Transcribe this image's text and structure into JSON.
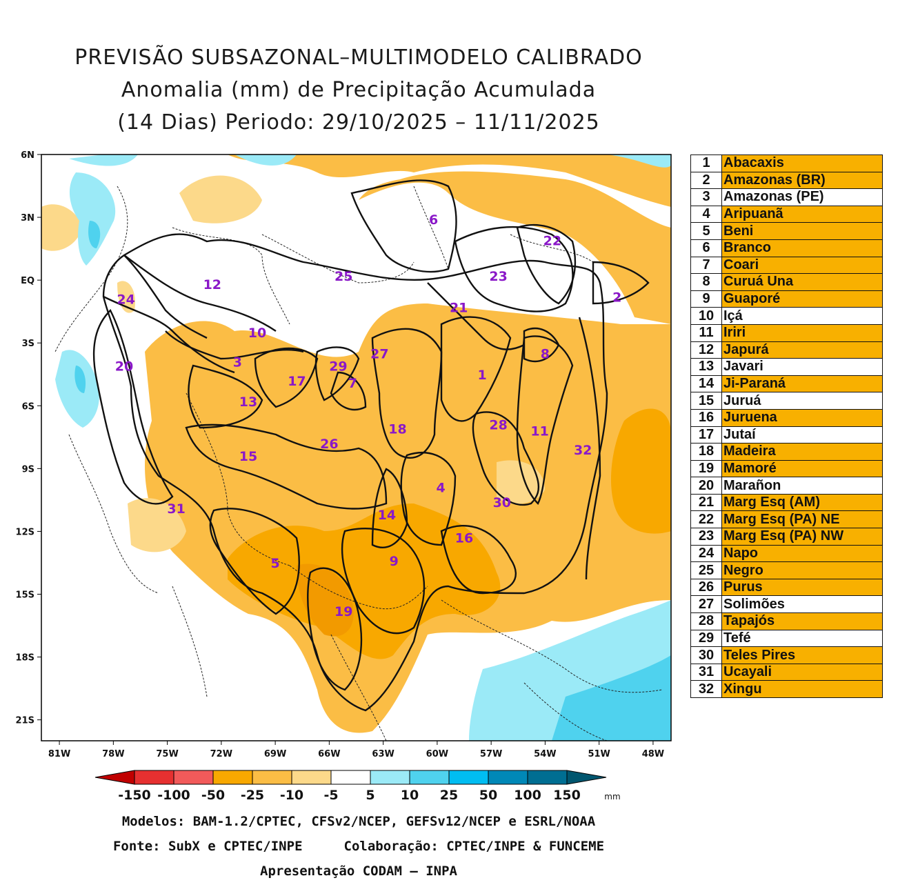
{
  "title": {
    "line1": "PREVISÃO SUBSAZONAL–MULTIMODELO CALIBRADO",
    "line2": "Anomalia (mm) de Precipitação Acumulada",
    "line3": "(14 Dias) Periodo: 29/10/2025 – 11/11/2025"
  },
  "map": {
    "lon_range": [
      -82,
      -47
    ],
    "lat_range": [
      -22,
      6
    ],
    "x_ticks": [
      "81W",
      "78W",
      "75W",
      "72W",
      "69W",
      "66W",
      "63W",
      "60W",
      "57W",
      "54W",
      "51W",
      "48W"
    ],
    "y_ticks": [
      "6N",
      "3N",
      "EQ",
      "3S",
      "6S",
      "9S",
      "12S",
      "15S",
      "18S",
      "21S"
    ],
    "basin_labels": [
      {
        "id": "1",
        "lon": -57.5,
        "lat": -4.5
      },
      {
        "id": "2",
        "lon": -50.0,
        "lat": -0.8
      },
      {
        "id": "3",
        "lon": -71.1,
        "lat": -3.9
      },
      {
        "id": "4",
        "lon": -59.8,
        "lat": -9.9
      },
      {
        "id": "5",
        "lon": -69.0,
        "lat": -13.5
      },
      {
        "id": "6",
        "lon": -60.2,
        "lat": 2.9
      },
      {
        "id": "7",
        "lon": -64.7,
        "lat": -4.9
      },
      {
        "id": "8",
        "lon": -54.0,
        "lat": -3.5
      },
      {
        "id": "9",
        "lon": -62.4,
        "lat": -13.4
      },
      {
        "id": "10",
        "lon": -70.0,
        "lat": -2.5
      },
      {
        "id": "11",
        "lon": -54.3,
        "lat": -7.2
      },
      {
        "id": "12",
        "lon": -72.5,
        "lat": -0.2
      },
      {
        "id": "13",
        "lon": -70.5,
        "lat": -5.8
      },
      {
        "id": "14",
        "lon": -62.8,
        "lat": -11.2
      },
      {
        "id": "15",
        "lon": -70.5,
        "lat": -8.4
      },
      {
        "id": "16",
        "lon": -58.5,
        "lat": -12.3
      },
      {
        "id": "17",
        "lon": -67.8,
        "lat": -4.8
      },
      {
        "id": "18",
        "lon": -62.2,
        "lat": -7.1
      },
      {
        "id": "19",
        "lon": -65.2,
        "lat": -15.8
      },
      {
        "id": "20",
        "lon": -77.4,
        "lat": -4.1
      },
      {
        "id": "21",
        "lon": -58.8,
        "lat": -1.3
      },
      {
        "id": "22",
        "lon": -53.6,
        "lat": 1.9
      },
      {
        "id": "23",
        "lon": -56.6,
        "lat": 0.2
      },
      {
        "id": "24",
        "lon": -77.3,
        "lat": -0.9
      },
      {
        "id": "25",
        "lon": -65.2,
        "lat": 0.2
      },
      {
        "id": "26",
        "lon": -66.0,
        "lat": -7.8
      },
      {
        "id": "27",
        "lon": -63.2,
        "lat": -3.5
      },
      {
        "id": "28",
        "lon": -56.6,
        "lat": -6.9
      },
      {
        "id": "29",
        "lon": -65.5,
        "lat": -4.1
      },
      {
        "id": "30",
        "lon": -56.4,
        "lat": -10.6
      },
      {
        "id": "31",
        "lon": -74.5,
        "lat": -10.9
      },
      {
        "id": "32",
        "lon": -51.9,
        "lat": -8.1
      }
    ]
  },
  "colorbar": {
    "labels": [
      "-150",
      "-100",
      "-50",
      "-25",
      "-10",
      "-5",
      "5",
      "10",
      "25",
      "50",
      "100",
      "150"
    ],
    "unit": "mm",
    "colors": [
      "#c00000",
      "#e63030",
      "#f25a5a",
      "#f8a800",
      "#fbbd45",
      "#fcd98a",
      "#ffffff",
      "#9beaf7",
      "#4fd2ee",
      "#00bdf2",
      "#0088b7",
      "#006e92",
      "#00566f"
    ]
  },
  "credits": {
    "line1": "Modelos: BAM-1.2/CPTEC, CFSv2/NCEP, GEFSv12/NCEP e ESRL/NOAA",
    "line2a": "Fonte: SubX e CPTEC/INPE",
    "line2b": "Colaboração: CPTEC/INPE & FUNCEME",
    "line3": "Apresentação CODAM – INPA"
  },
  "legend": {
    "highlight_color": "#f8b000",
    "rows": [
      {
        "num": "1",
        "name": "Abacaxis",
        "highlight": true
      },
      {
        "num": "2",
        "name": "Amazonas (BR)",
        "highlight": true
      },
      {
        "num": "3",
        "name": "Amazonas (PE)",
        "highlight": false
      },
      {
        "num": "4",
        "name": "Aripuanã",
        "highlight": true
      },
      {
        "num": "5",
        "name": "Beni",
        "highlight": true
      },
      {
        "num": "6",
        "name": "Branco",
        "highlight": true
      },
      {
        "num": "7",
        "name": "Coari",
        "highlight": true
      },
      {
        "num": "8",
        "name": "Curuá Una",
        "highlight": true
      },
      {
        "num": "9",
        "name": "Guaporé",
        "highlight": true
      },
      {
        "num": "10",
        "name": "Içá",
        "highlight": false
      },
      {
        "num": "11",
        "name": "Iriri",
        "highlight": true
      },
      {
        "num": "12",
        "name": "Japurá",
        "highlight": true
      },
      {
        "num": "13",
        "name": "Javari",
        "highlight": false
      },
      {
        "num": "14",
        "name": "Ji-Paraná",
        "highlight": true
      },
      {
        "num": "15",
        "name": "Juruá",
        "highlight": false
      },
      {
        "num": "16",
        "name": "Juruena",
        "highlight": true
      },
      {
        "num": "17",
        "name": "Jutaí",
        "highlight": false
      },
      {
        "num": "18",
        "name": "Madeira",
        "highlight": true
      },
      {
        "num": "19",
        "name": "Mamoré",
        "highlight": true
      },
      {
        "num": "20",
        "name": "Marañon",
        "highlight": false
      },
      {
        "num": "21",
        "name": "Marg Esq (AM)",
        "highlight": true
      },
      {
        "num": "22",
        "name": "Marg Esq (PA) NE",
        "highlight": true
      },
      {
        "num": "23",
        "name": "Marg Esq (PA) NW",
        "highlight": true
      },
      {
        "num": "24",
        "name": "Napo",
        "highlight": true
      },
      {
        "num": "25",
        "name": "Negro",
        "highlight": true
      },
      {
        "num": "26",
        "name": "Purus",
        "highlight": true
      },
      {
        "num": "27",
        "name": "Solimões",
        "highlight": false
      },
      {
        "num": "28",
        "name": "Tapajós",
        "highlight": true
      },
      {
        "num": "29",
        "name": "Tefé",
        "highlight": false
      },
      {
        "num": "30",
        "name": "Teles Pires",
        "highlight": true
      },
      {
        "num": "31",
        "name": "Ucayali",
        "highlight": true
      },
      {
        "num": "32",
        "name": "Xingu",
        "highlight": true
      }
    ]
  }
}
